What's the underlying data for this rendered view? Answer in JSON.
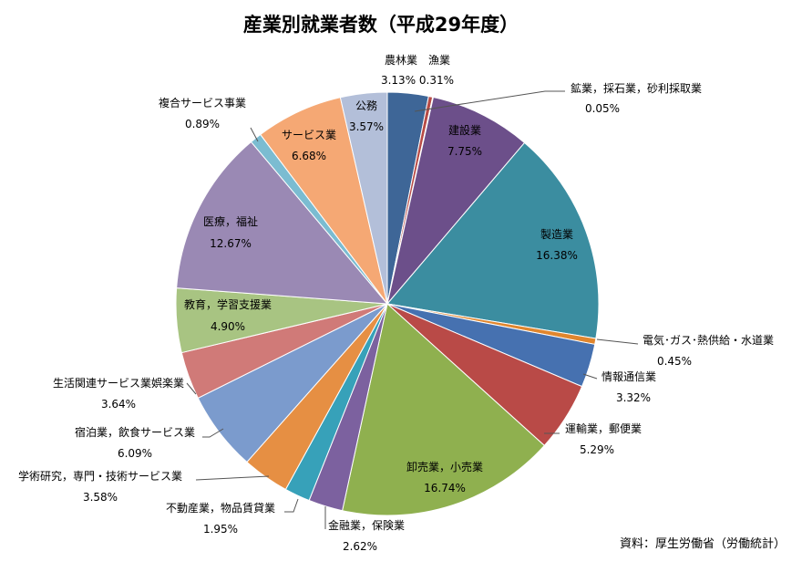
{
  "chart_data": {
    "type": "pie",
    "title": "産業別就業者数（平成29年度）",
    "source": "資料：厚生労働省（労働統計）",
    "start_angle_deg": 0,
    "direction": "clockwise",
    "slices": [
      {
        "name": "農林業 漁業",
        "name_line1": "農林業",
        "name_line2": "漁業",
        "value": 3.13,
        "value2": 0.31,
        "label": "3.13%",
        "label2": "0.31%",
        "color": "#3e6697",
        "color2": "#b74b46"
      },
      {
        "name": "鉱業，採石業，砂利採取業",
        "value": 0.05,
        "label": "0.05%",
        "color": "#86a44a"
      },
      {
        "name": "建設業",
        "value": 7.75,
        "label": "7.75%",
        "color": "#6c4f8a"
      },
      {
        "name": "製造業",
        "value": 16.38,
        "label": "16.38%",
        "color": "#3b8da0"
      },
      {
        "name": "電気･ガス･熱供給・水道業",
        "value": 0.45,
        "label": "0.45%",
        "color": "#e0862e"
      },
      {
        "name": "情報通信業",
        "value": 3.32,
        "label": "3.32%",
        "color": "#4671b0"
      },
      {
        "name": "運輸業，郵便業",
        "value": 5.29,
        "label": "5.29%",
        "color": "#b94a47"
      },
      {
        "name": "卸売業，小売業",
        "value": 16.74,
        "label": "16.74%",
        "color": "#8fb04f"
      },
      {
        "name": "金融業，保険業",
        "value": 2.62,
        "label": "2.62%",
        "color": "#7c619f"
      },
      {
        "name": "不動産業，物品賃貸業",
        "value": 1.95,
        "label": "1.95%",
        "color": "#37a1b9"
      },
      {
        "name": "学術研究，専門・技術サービス業",
        "value": 3.58,
        "label": "3.58%",
        "color": "#e68f43"
      },
      {
        "name": "宿泊業，飲食サービス業",
        "value": 6.09,
        "label": "6.09%",
        "color": "#7b9bcd"
      },
      {
        "name": "生活関連サービス業娯楽業",
        "value": 3.64,
        "label": "3.64%",
        "color": "#d07a78"
      },
      {
        "name": "教育，学習支援業",
        "value": 4.9,
        "label": "4.90%",
        "color": "#a8c482"
      },
      {
        "name": "医療，福祉",
        "value": 12.67,
        "label": "12.67%",
        "color": "#9a89b4"
      },
      {
        "name": "複合サービス事業",
        "value": 0.89,
        "label": "0.89%",
        "color": "#7bbcd1"
      },
      {
        "name": "サービス業",
        "value": 6.68,
        "label": "6.68%",
        "color": "#f5a874"
      },
      {
        "name": "公務",
        "value": 3.57,
        "label": "3.57%",
        "color": "#b3bfd9"
      }
    ]
  }
}
